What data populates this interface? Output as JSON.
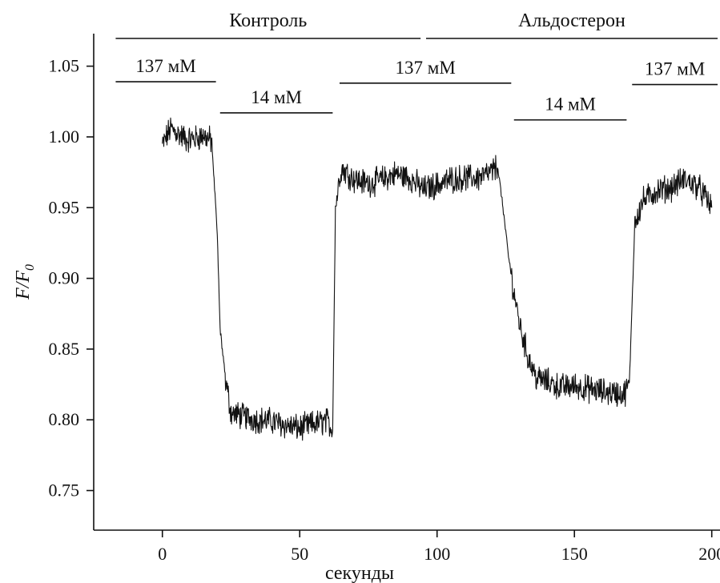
{
  "chart_data": {
    "type": "line",
    "title": "",
    "xlabel": "секунды",
    "ylabel": {
      "main": "F/F",
      "subscript": "0"
    },
    "xlim": [
      -25,
      203
    ],
    "ylim": [
      0.722,
      1.073
    ],
    "xticks": [
      0,
      50,
      100,
      150,
      200
    ],
    "xtick_labels": [
      "0",
      "50",
      "100",
      "150",
      "200"
    ],
    "yticks": [
      0.75,
      0.8,
      0.85,
      0.9,
      0.95,
      1.0,
      1.05
    ],
    "ytick_labels": [
      "0.75",
      "0.80",
      "0.85",
      "0.90",
      "0.95",
      "1.00",
      "1.05"
    ],
    "grid": false,
    "legend": "none",
    "group_bars": [
      {
        "label": "Контроль",
        "x_start": -17,
        "x_end": 94
      },
      {
        "label": "Альдостерон",
        "x_start": 96,
        "x_end": 207
      }
    ],
    "condition_bars": [
      {
        "label": "137 мМ",
        "x_start": -17,
        "x_end": 19.5,
        "y": 1.039
      },
      {
        "label": "14 мМ",
        "x_start": 21,
        "x_end": 62,
        "y": 1.017
      },
      {
        "label": "137 мМ",
        "x_start": 64.5,
        "x_end": 127,
        "y": 1.038
      },
      {
        "label": "14 мМ",
        "x_start": 128,
        "x_end": 169,
        "y": 1.012
      },
      {
        "label": "137 мМ",
        "x_start": 171,
        "x_end": 207,
        "y": 1.037
      }
    ],
    "series": [
      {
        "x": [
          0,
          3,
          6,
          9,
          12,
          15,
          18,
          20,
          21,
          23,
          25,
          30,
          35,
          40,
          45,
          50,
          55,
          60,
          62,
          63,
          65,
          70,
          75,
          80,
          85,
          90,
          95,
          100,
          105,
          110,
          115,
          120,
          122,
          124,
          126,
          128,
          130,
          133,
          136,
          140,
          145,
          150,
          155,
          160,
          165,
          168,
          170,
          172,
          175,
          180,
          185,
          190,
          195,
          200
        ],
        "y": [
          0.994,
          1.006,
          1.002,
          0.998,
          0.999,
          1.001,
          0.997,
          0.93,
          0.865,
          0.828,
          0.805,
          0.802,
          0.8,
          0.799,
          0.796,
          0.794,
          0.797,
          0.799,
          0.793,
          0.95,
          0.978,
          0.97,
          0.967,
          0.97,
          0.974,
          0.971,
          0.963,
          0.966,
          0.97,
          0.971,
          0.971,
          0.975,
          0.98,
          0.95,
          0.915,
          0.89,
          0.868,
          0.845,
          0.83,
          0.827,
          0.823,
          0.824,
          0.822,
          0.82,
          0.819,
          0.818,
          0.825,
          0.94,
          0.955,
          0.962,
          0.964,
          0.97,
          0.965,
          0.95
        ],
        "noise_amplitude": 0.008
      }
    ]
  }
}
